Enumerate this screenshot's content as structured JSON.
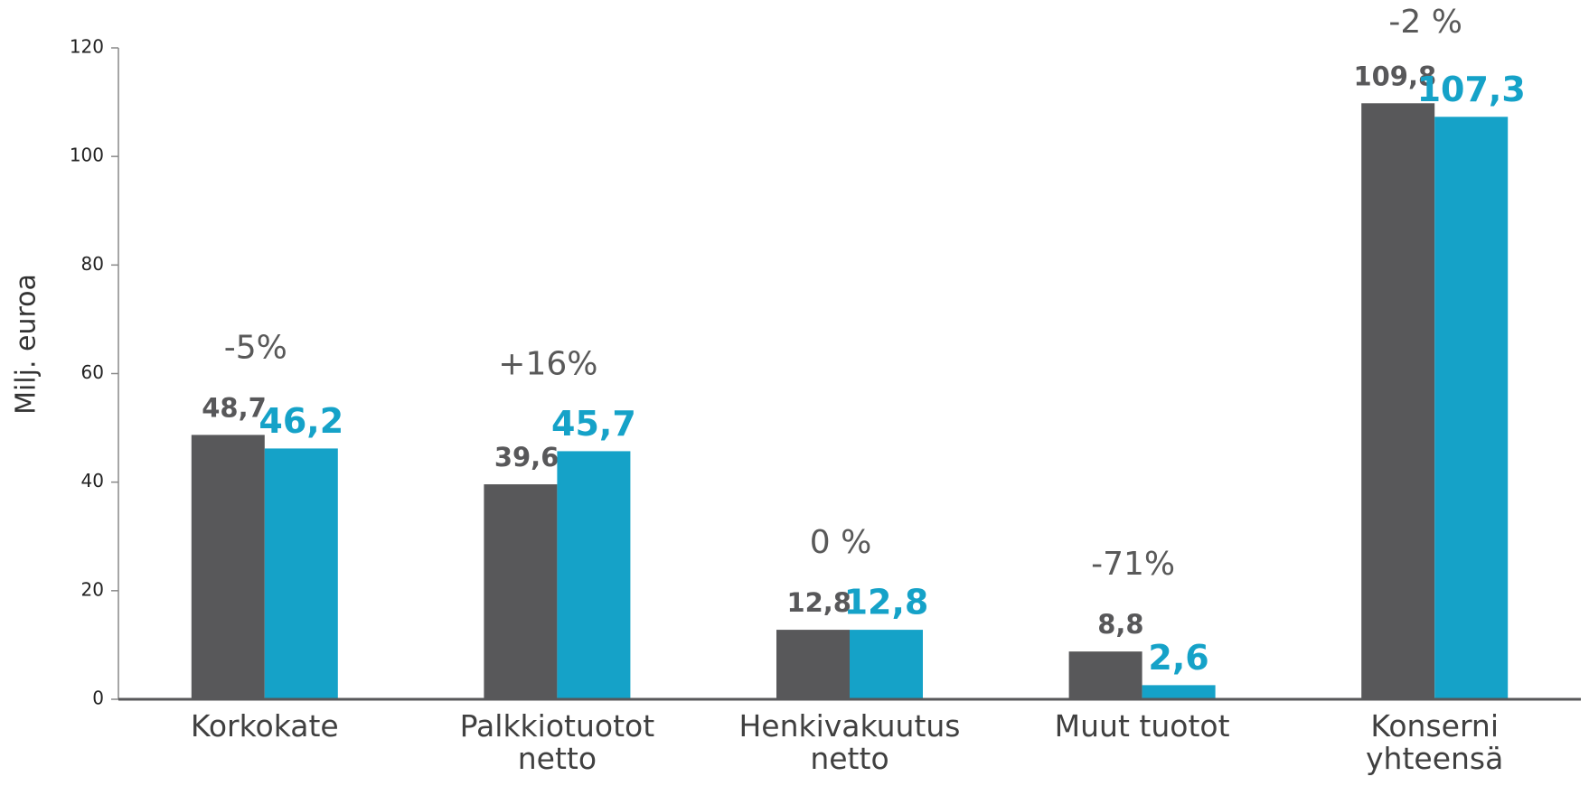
{
  "chart_data": {
    "type": "bar",
    "y_label": "Milj. euroa",
    "categories": [
      "Korkokate",
      "Palkkiotuotot\nnetto",
      "Henkivakuutus\nnetto",
      "Muut tuotot",
      "Konserni\nyhteensä"
    ],
    "series": [
      {
        "color": "#58585a",
        "values": [
          48.7,
          39.6,
          12.8,
          8.8,
          109.8
        ],
        "value_labels": [
          "48,7",
          "39,6",
          "12,8",
          "8,8",
          "109,8"
        ]
      },
      {
        "color": "#15a2c8",
        "values": [
          46.2,
          45.7,
          12.8,
          2.6,
          107.3
        ],
        "value_labels": [
          "46,2",
          "45,7",
          "12,8",
          "2,6",
          "107,3"
        ]
      }
    ],
    "annotations": [
      "-5%",
      "+16%",
      "0 %",
      "-71%",
      "-2 %"
    ],
    "ylim": [
      0,
      120
    ],
    "yticks": [
      0,
      20,
      40,
      60,
      80,
      100,
      120
    ],
    "grid": false
  }
}
